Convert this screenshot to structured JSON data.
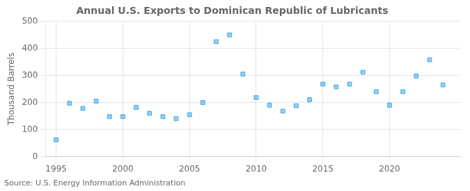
{
  "chart_data": {
    "type": "scatter",
    "title": "Annual U.S. Exports to Dominican Republic of Lubricants",
    "ylabel": "Thousand Barrels",
    "source": "Source: U.S. Energy Information Administration",
    "x": [
      1995,
      1996,
      1997,
      1998,
      1999,
      2000,
      2001,
      2002,
      2003,
      2004,
      2005,
      2006,
      2007,
      2008,
      2009,
      2010,
      2011,
      2012,
      2013,
      2014,
      2015,
      2016,
      2017,
      2018,
      2019,
      2020,
      2021,
      2022,
      2023,
      2024
    ],
    "values": [
      62,
      197,
      178,
      205,
      148,
      148,
      182,
      160,
      148,
      140,
      155,
      200,
      425,
      450,
      305,
      218,
      190,
      168,
      188,
      210,
      268,
      258,
      268,
      312,
      240,
      190,
      240,
      298,
      358,
      265
    ],
    "xlim": [
      1994.2,
      2025.3
    ],
    "xticks": [
      1995,
      2000,
      2005,
      2010,
      2015,
      2020
    ],
    "ylim": [
      0,
      500
    ],
    "yticks": [
      0,
      100,
      200,
      300,
      400,
      500
    ],
    "marker": "square",
    "grid": true
  }
}
